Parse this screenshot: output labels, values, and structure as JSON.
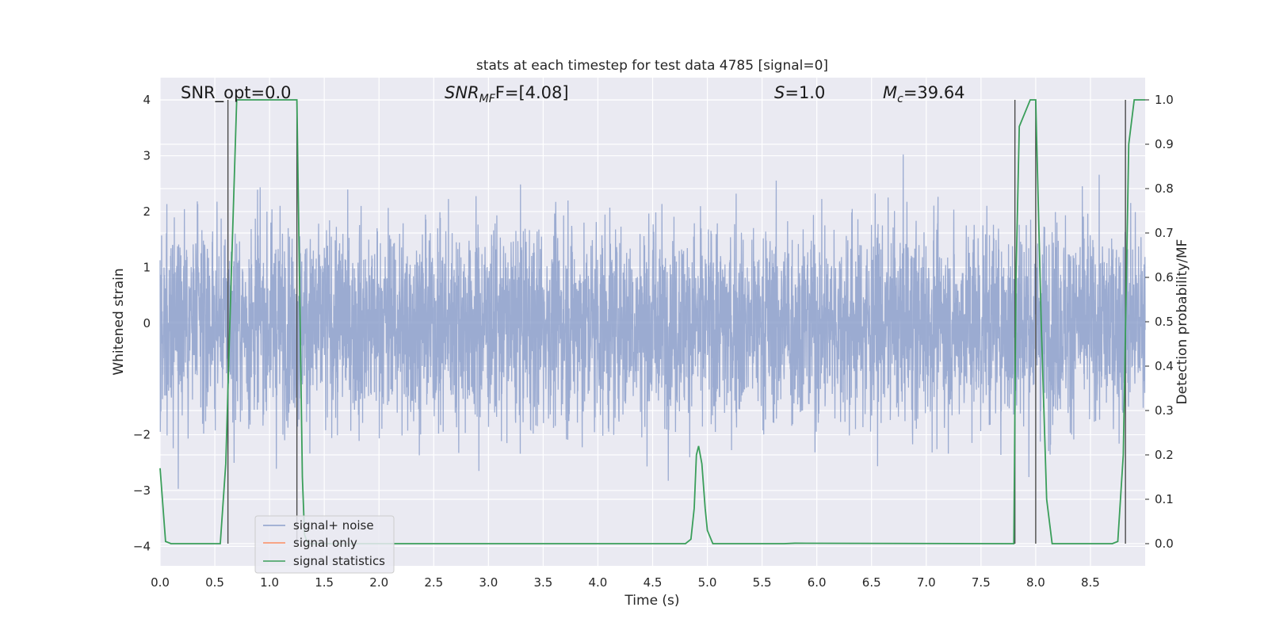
{
  "chart_data": {
    "type": "line",
    "title": "stats at each timestep for test data 4785 [signal=0]",
    "xlabel": "Time (s)",
    "ylabel": "Whitened strain",
    "ylabel_right": "Detection probability/MF",
    "xlim": [
      0,
      9.0
    ],
    "ylim": [
      -4.35,
      4.4
    ],
    "ylim_right": [
      -0.05,
      1.05
    ],
    "grid": true,
    "legend_position": "lower-left",
    "x_ticks": [
      "0.0",
      "0.5",
      "1.0",
      "1.5",
      "2.0",
      "2.5",
      "3.0",
      "3.5",
      "4.0",
      "4.5",
      "5.0",
      "5.5",
      "6.0",
      "6.5",
      "7.0",
      "7.5",
      "8.0",
      "8.5"
    ],
    "y_ticks": [
      "4",
      "3",
      "2",
      "1",
      "0",
      "−2",
      "−3",
      "−4"
    ],
    "y_ticks_right": [
      "1.0",
      "0.9",
      "0.8",
      "0.7",
      "0.6",
      "0.5",
      "0.4",
      "0.3",
      "0.2",
      "0.1",
      "0.0"
    ],
    "annotations": {
      "snr_opt": "SNR_opt=0.0",
      "snr_mf_main": "SNR",
      "snr_mf_sub": "MF",
      "snr_mf_rest": "F=[4.08]",
      "s_main": "S",
      "s_rest": "=1.0",
      "mc_main": "M",
      "mc_sub": "c",
      "mc_rest": "=39.64"
    },
    "series": [
      {
        "name": "signal+ noise",
        "color": "#8da0cb",
        "axis": "left",
        "note": "dense whitened noise trace spanning roughly -4 to 4"
      },
      {
        "name": "signal only",
        "color": "#fc8d62",
        "axis": "left",
        "values": []
      },
      {
        "name": "signal statistics",
        "color": "#3a9e5a",
        "axis": "right",
        "x": [
          0.0,
          0.05,
          0.1,
          0.15,
          0.5,
          0.55,
          0.6,
          0.65,
          0.7,
          0.75,
          1.0,
          1.2,
          1.25,
          1.3,
          1.32,
          1.35,
          1.4,
          4.8,
          4.85,
          4.88,
          4.9,
          4.92,
          4.95,
          4.98,
          5.0,
          5.05,
          5.1,
          5.7,
          5.8,
          7.8,
          7.82,
          7.85,
          7.9,
          7.95,
          8.0,
          8.05,
          8.1,
          8.15,
          8.7,
          8.75,
          8.8,
          8.85,
          8.9,
          8.95,
          9.0
        ],
        "y": [
          0.17,
          0.005,
          0.0,
          0.0,
          0.0,
          0.0,
          0.18,
          0.6,
          1.0,
          1.0,
          1.0,
          1.0,
          1.0,
          0.15,
          0.02,
          0.0,
          0.0,
          0.0,
          0.01,
          0.08,
          0.2,
          0.22,
          0.18,
          0.08,
          0.03,
          0.0,
          0.0,
          0.0,
          0.001,
          0.0,
          0.6,
          0.94,
          0.97,
          1.0,
          1.0,
          0.5,
          0.1,
          0.0,
          0.0,
          0.005,
          0.2,
          0.9,
          1.0,
          1.0,
          1.0
        ]
      }
    ],
    "vertical_lines": [
      0.62,
      1.25,
      7.81,
      8.0,
      8.82
    ]
  }
}
